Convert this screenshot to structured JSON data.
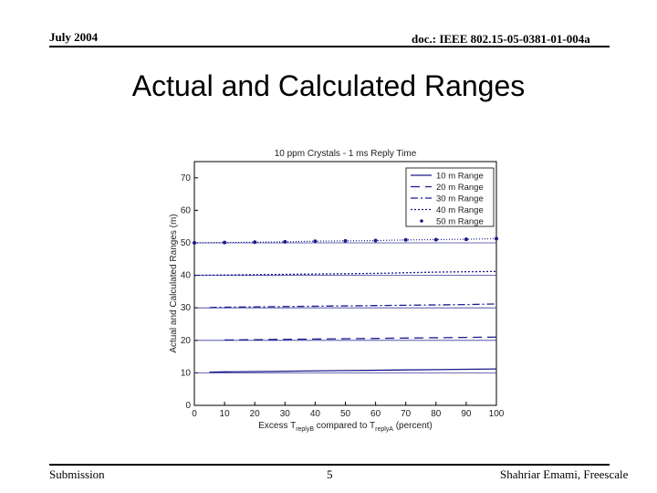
{
  "header": {
    "left": "July 2004",
    "right": "doc.: IEEE 802.15-05-0381-01-004a"
  },
  "slide_title": "Actual and Calculated Ranges",
  "footer": {
    "left": "Submission",
    "center": "5",
    "right": "Shahriar Emami, Freescale"
  },
  "colors": {
    "series": "#1a1a8c",
    "axis": "#000000",
    "grid_box": "#000000"
  },
  "chart_data": {
    "type": "line",
    "title": "10 ppm Crystals - 1 ms Reply Time",
    "xlabel_parts": [
      "Excess ",
      "T",
      "replyB",
      " compared to ",
      "T",
      "replyA",
      " (percent)"
    ],
    "ylabel": "Actual and Calculated Ranges (m)",
    "xlim": [
      0,
      100
    ],
    "ylim": [
      0,
      75
    ],
    "xticks": [
      "0",
      "10",
      "20",
      "30",
      "40",
      "50",
      "60",
      "70",
      "80",
      "90",
      "100"
    ],
    "yticks": [
      "0",
      "10",
      "20",
      "30",
      "40",
      "50",
      "60",
      "70"
    ],
    "legend_position": "top-right",
    "series": [
      {
        "name": "10 m Range",
        "style": "solid",
        "actual": 10,
        "x": [
          5,
          10,
          20,
          30,
          40,
          50,
          60,
          70,
          80,
          90,
          100
        ],
        "values": [
          10.2,
          10.3,
          10.4,
          10.5,
          10.6,
          10.7,
          10.8,
          10.9,
          11.0,
          11.1,
          11.2
        ]
      },
      {
        "name": "20 m Range",
        "style": "dashed",
        "actual": 20,
        "x": [
          10,
          20,
          30,
          40,
          50,
          60,
          70,
          80,
          90,
          100
        ],
        "values": [
          20.1,
          20.2,
          20.3,
          20.4,
          20.5,
          20.6,
          20.7,
          20.8,
          20.9,
          21.0
        ]
      },
      {
        "name": "30 m Range",
        "style": "dashdot",
        "actual": 30,
        "x": [
          5,
          10,
          20,
          30,
          40,
          50,
          60,
          70,
          80,
          90,
          100
        ],
        "values": [
          30.1,
          30.2,
          30.3,
          30.4,
          30.5,
          30.6,
          30.7,
          30.8,
          30.9,
          31.0,
          31.2
        ]
      },
      {
        "name": "40 m Range",
        "style": "dotted",
        "actual": 40,
        "x": [
          0,
          10,
          20,
          30,
          40,
          50,
          60,
          70,
          80,
          90,
          100
        ],
        "values": [
          40.0,
          40.1,
          40.2,
          40.3,
          40.4,
          40.5,
          40.6,
          40.8,
          41.0,
          41.1,
          41.2
        ]
      },
      {
        "name": "50 m Range",
        "style": "points",
        "actual": 50,
        "x": [
          0,
          10,
          20,
          30,
          40,
          50,
          60,
          70,
          80,
          90,
          100
        ],
        "values": [
          50.0,
          50.1,
          50.2,
          50.3,
          50.5,
          50.6,
          50.7,
          50.9,
          51.0,
          51.1,
          51.3
        ]
      }
    ]
  }
}
